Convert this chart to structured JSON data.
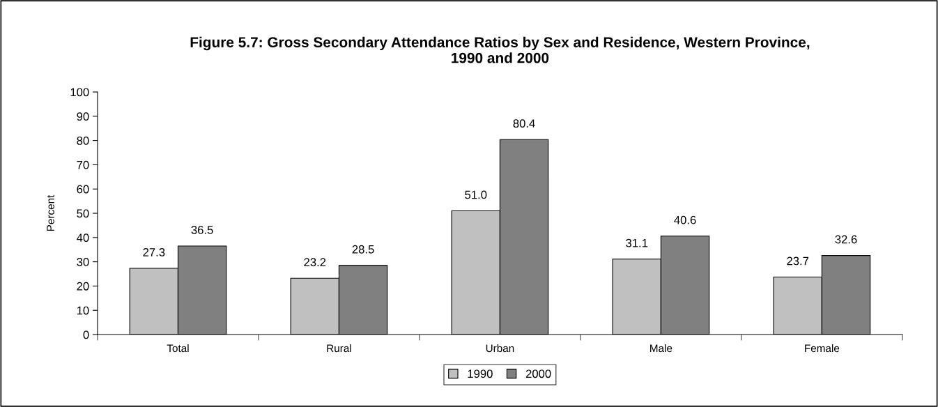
{
  "chart_data": {
    "type": "bar",
    "title": "Figure 5.7: Gross Secondary Attendance Ratios by Sex and Residence, Western Province,\n1990 and 2000",
    "ylabel": "Percent",
    "categories": [
      "Total",
      "Rural",
      "Urban",
      "Male",
      "Female"
    ],
    "series": [
      {
        "name": "1990",
        "color": "#c0c0c0",
        "values": [
          27.3,
          23.2,
          51.0,
          31.1,
          23.7
        ],
        "value_labels": [
          "27.3",
          "23.2",
          "51.0",
          "31.1",
          "23.7"
        ]
      },
      {
        "name": "2000",
        "color": "#808080",
        "values": [
          36.5,
          28.5,
          80.4,
          40.6,
          32.6
        ],
        "value_labels": [
          "36.5",
          "28.5",
          "80.4",
          "40.6",
          "32.6"
        ]
      }
    ],
    "ylim": [
      0,
      100
    ],
    "yticks": [
      0,
      10,
      20,
      30,
      40,
      50,
      60,
      70,
      80,
      90,
      100
    ],
    "grid": false,
    "legend": "bottom"
  }
}
